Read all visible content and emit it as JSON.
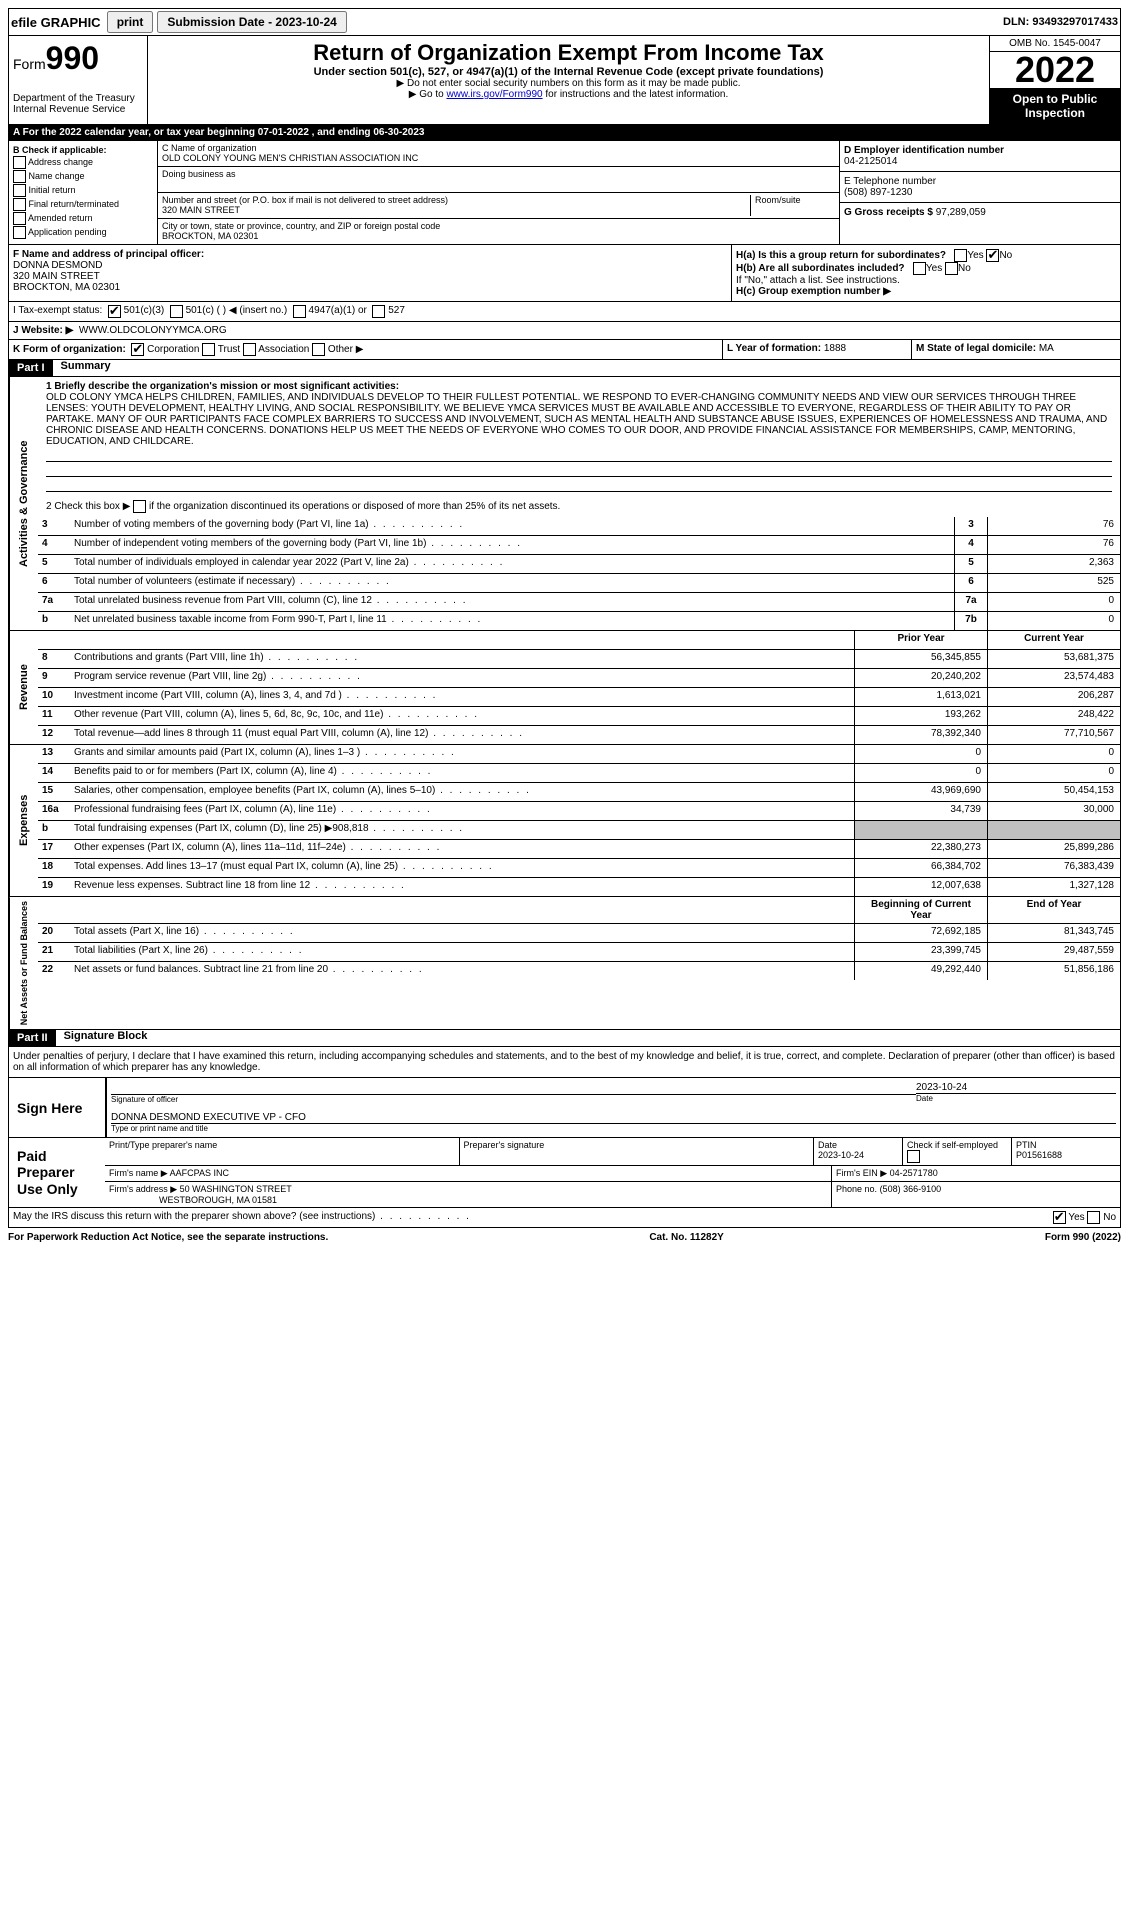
{
  "topbar": {
    "efile": "efile GRAPHIC",
    "print": "print",
    "subdate_label": "Submission Date - ",
    "subdate": "2023-10-24",
    "dln": "DLN: 93493297017433"
  },
  "header": {
    "form": "Form",
    "formnum": "990",
    "dept": "Department of the Treasury\nInternal Revenue Service",
    "title": "Return of Organization Exempt From Income Tax",
    "sub": "Under section 501(c), 527, or 4947(a)(1) of the Internal Revenue Code (except private foundations)",
    "note1": "▶ Do not enter social security numbers on this form as it may be made public.",
    "note2_pre": "▶ Go to ",
    "note2_link": "www.irs.gov/Form990",
    "note2_post": " for instructions and the latest information.",
    "omb": "OMB No. 1545-0047",
    "year": "2022",
    "open": "Open to Public Inspection"
  },
  "taxyear": "A For the 2022 calendar year, or tax year beginning 07-01-2022   , and ending 06-30-2023",
  "sectionB": {
    "label": "B Check if applicable:",
    "items": [
      "Address change",
      "Name change",
      "Initial return",
      "Final return/terminated",
      "Amended return",
      "Application pending"
    ]
  },
  "sectionC": {
    "name_label": "C Name of organization",
    "name": "OLD COLONY YOUNG MEN'S CHRISTIAN ASSOCIATION INC",
    "dba_label": "Doing business as",
    "addr_label": "Number and street (or P.O. box if mail is not delivered to street address)",
    "addr": "320 MAIN STREET",
    "room_label": "Room/suite",
    "city_label": "City or town, state or province, country, and ZIP or foreign postal code",
    "city": "BROCKTON, MA  02301"
  },
  "sectionD": {
    "ein_label": "D Employer identification number",
    "ein": "04-2125014",
    "phone_label": "E Telephone number",
    "phone": "(508) 897-1230",
    "gross_label": "G Gross receipts $",
    "gross": "97,289,059"
  },
  "sectionF": {
    "label": "F  Name and address of principal officer:",
    "name": "DONNA DESMOND",
    "addr1": "320 MAIN STREET",
    "addr2": "BROCKTON, MA  02301"
  },
  "sectionH": {
    "ha": "H(a)  Is this a group return for subordinates?",
    "hb": "H(b)  Are all subordinates included?",
    "hb_note": "If \"No,\" attach a list. See instructions.",
    "hc": "H(c)  Group exemption number ▶"
  },
  "sectionI": {
    "label": "I   Tax-exempt status:",
    "opts": [
      "501(c)(3)",
      "501(c) (  ) ◀ (insert no.)",
      "4947(a)(1) or",
      "527"
    ]
  },
  "sectionJ": {
    "label": "J   Website: ▶",
    "val": "WWW.OLDCOLONYYMCA.ORG"
  },
  "sectionK": {
    "label": "K Form of organization:",
    "opts": [
      "Corporation",
      "Trust",
      "Association",
      "Other ▶"
    ],
    "L_label": "L Year of formation:",
    "L_val": "1888",
    "M_label": "M State of legal domicile:",
    "M_val": "MA"
  },
  "part1": {
    "header": "Part I",
    "title": "Summary",
    "mission_label": "1  Briefly describe the organization's mission or most significant activities:",
    "mission": "OLD COLONY YMCA HELPS CHILDREN, FAMILIES, AND INDIVIDUALS DEVELOP TO THEIR FULLEST POTENTIAL. WE RESPOND TO EVER-CHANGING COMMUNITY NEEDS AND VIEW OUR SERVICES THROUGH THREE LENSES: YOUTH DEVELOPMENT, HEALTHY LIVING, AND SOCIAL RESPONSIBILITY. WE BELIEVE YMCA SERVICES MUST BE AVAILABLE AND ACCESSIBLE TO EVERYONE, REGARDLESS OF THEIR ABILITY TO PAY OR PARTAKE. MANY OF OUR PARTICIPANTS FACE COMPLEX BARRIERS TO SUCCESS AND INVOLVEMENT, SUCH AS MENTAL HEALTH AND SUBSTANCE ABUSE ISSUES, EXPERIENCES OF HOMELESSNESS AND TRAUMA, AND CHRONIC DISEASE AND HEALTH CONCERNS. DONATIONS HELP US MEET THE NEEDS OF EVERYONE WHO COMES TO OUR DOOR, AND PROVIDE FINANCIAL ASSISTANCE FOR MEMBERSHIPS, CAMP, MENTORING, EDUCATION, AND CHILDCARE.",
    "line2_pre": "2   Check this box ▶",
    "line2_post": "if the organization discontinued its operations or disposed of more than 25% of its net assets."
  },
  "governance": {
    "side": "Activities & Governance",
    "rows": [
      {
        "n": "3",
        "d": "Number of voting members of the governing body (Part VI, line 1a)",
        "box": "3",
        "v": "76"
      },
      {
        "n": "4",
        "d": "Number of independent voting members of the governing body (Part VI, line 1b)",
        "box": "4",
        "v": "76"
      },
      {
        "n": "5",
        "d": "Total number of individuals employed in calendar year 2022 (Part V, line 2a)",
        "box": "5",
        "v": "2,363"
      },
      {
        "n": "6",
        "d": "Total number of volunteers (estimate if necessary)",
        "box": "6",
        "v": "525"
      },
      {
        "n": "7a",
        "d": "Total unrelated business revenue from Part VIII, column (C), line 12",
        "box": "7a",
        "v": "0"
      },
      {
        "n": "b",
        "d": "Net unrelated business taxable income from Form 990-T, Part I, line 11",
        "box": "7b",
        "v": "0"
      }
    ]
  },
  "revenue": {
    "side": "Revenue",
    "header": {
      "prior": "Prior Year",
      "current": "Current Year"
    },
    "rows": [
      {
        "n": "8",
        "d": "Contributions and grants (Part VIII, line 1h)",
        "p": "56,345,855",
        "c": "53,681,375"
      },
      {
        "n": "9",
        "d": "Program service revenue (Part VIII, line 2g)",
        "p": "20,240,202",
        "c": "23,574,483"
      },
      {
        "n": "10",
        "d": "Investment income (Part VIII, column (A), lines 3, 4, and 7d )",
        "p": "1,613,021",
        "c": "206,287"
      },
      {
        "n": "11",
        "d": "Other revenue (Part VIII, column (A), lines 5, 6d, 8c, 9c, 10c, and 11e)",
        "p": "193,262",
        "c": "248,422"
      },
      {
        "n": "12",
        "d": "Total revenue—add lines 8 through 11 (must equal Part VIII, column (A), line 12)",
        "p": "78,392,340",
        "c": "77,710,567"
      }
    ]
  },
  "expenses": {
    "side": "Expenses",
    "rows": [
      {
        "n": "13",
        "d": "Grants and similar amounts paid (Part IX, column (A), lines 1–3 )",
        "p": "0",
        "c": "0"
      },
      {
        "n": "14",
        "d": "Benefits paid to or for members (Part IX, column (A), line 4)",
        "p": "0",
        "c": "0"
      },
      {
        "n": "15",
        "d": "Salaries, other compensation, employee benefits (Part IX, column (A), lines 5–10)",
        "p": "43,969,690",
        "c": "50,454,153"
      },
      {
        "n": "16a",
        "d": "Professional fundraising fees (Part IX, column (A), line 11e)",
        "p": "34,739",
        "c": "30,000"
      },
      {
        "n": "b",
        "d": "Total fundraising expenses (Part IX, column (D), line 25) ▶908,818",
        "p": "",
        "c": "",
        "grey": true
      },
      {
        "n": "17",
        "d": "Other expenses (Part IX, column (A), lines 11a–11d, 11f–24e)",
        "p": "22,380,273",
        "c": "25,899,286"
      },
      {
        "n": "18",
        "d": "Total expenses. Add lines 13–17 (must equal Part IX, column (A), line 25)",
        "p": "66,384,702",
        "c": "76,383,439"
      },
      {
        "n": "19",
        "d": "Revenue less expenses. Subtract line 18 from line 12",
        "p": "12,007,638",
        "c": "1,327,128"
      }
    ]
  },
  "netassets": {
    "side": "Net Assets or Fund Balances",
    "header": {
      "prior": "Beginning of Current Year",
      "current": "End of Year"
    },
    "rows": [
      {
        "n": "20",
        "d": "Total assets (Part X, line 16)",
        "p": "72,692,185",
        "c": "81,343,745"
      },
      {
        "n": "21",
        "d": "Total liabilities (Part X, line 26)",
        "p": "23,399,745",
        "c": "29,487,559"
      },
      {
        "n": "22",
        "d": "Net assets or fund balances. Subtract line 21 from line 20",
        "p": "49,292,440",
        "c": "51,856,186"
      }
    ]
  },
  "part2": {
    "header": "Part II",
    "title": "Signature Block",
    "decl": "Under penalties of perjury, I declare that I have examined this return, including accompanying schedules and statements, and to the best of my knowledge and belief, it is true, correct, and complete. Declaration of preparer (other than officer) is based on all information of which preparer has any knowledge."
  },
  "sign": {
    "side": "Sign Here",
    "sig_label": "Signature of officer",
    "date": "2023-10-24",
    "date_label": "Date",
    "name": "DONNA DESMOND  EXECUTIVE VP - CFO",
    "name_label": "Type or print name and title"
  },
  "paid": {
    "side": "Paid Preparer Use Only",
    "h1": "Print/Type preparer's name",
    "h2": "Preparer's signature",
    "h3": "Date",
    "date": "2023-10-24",
    "h4": "Check        if self-employed",
    "h5": "PTIN",
    "ptin": "P01561688",
    "firm_label": "Firm's name    ▶",
    "firm": "AAFCPAS INC",
    "ein_label": "Firm's EIN ▶",
    "ein": "04-2571780",
    "addr_label": "Firm's address ▶",
    "addr": "50 WASHINGTON STREET",
    "addr2": "WESTBOROUGH, MA  01581",
    "phone_label": "Phone no.",
    "phone": "(508) 366-9100"
  },
  "discuss": "May the IRS discuss this return with the preparer shown above? (see instructions)",
  "footer": {
    "left": "For Paperwork Reduction Act Notice, see the separate instructions.",
    "mid": "Cat. No. 11282Y",
    "right": "Form 990 (2022)"
  }
}
